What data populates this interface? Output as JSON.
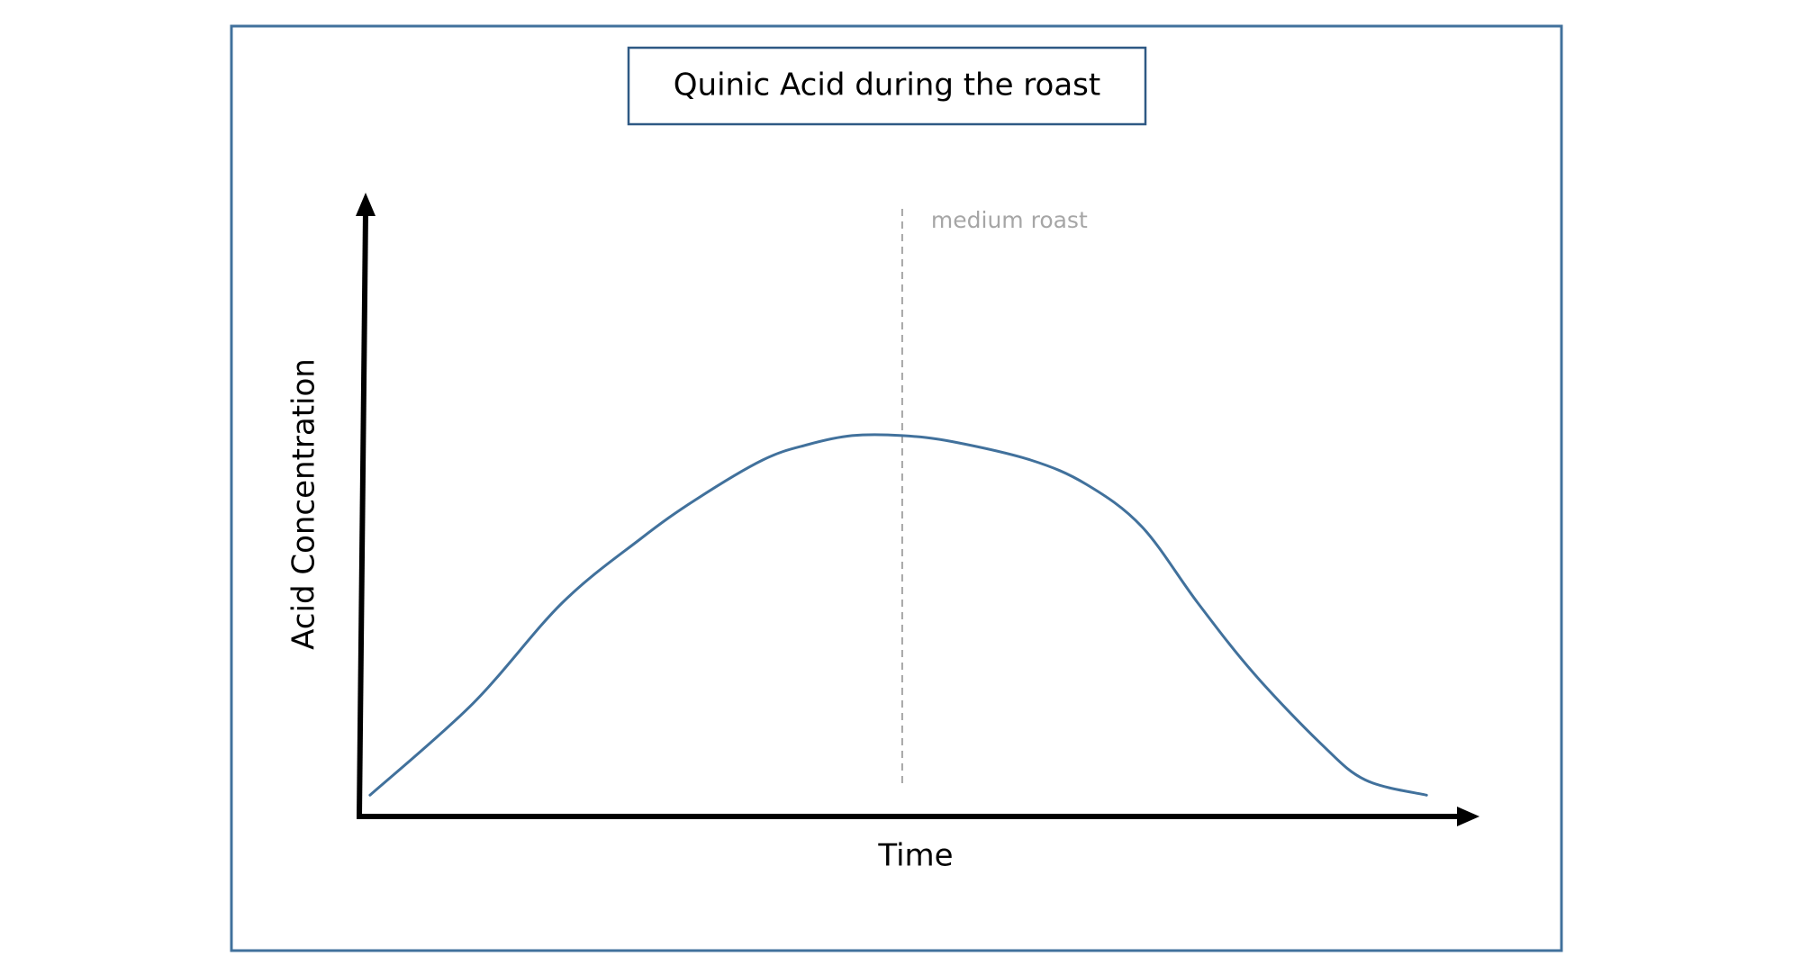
{
  "chart_data": {
    "type": "line",
    "title": "Quinic Acid during the roast",
    "xlabel": "Time",
    "ylabel": "Acid Concentration",
    "xlim": [
      0,
      100
    ],
    "ylim": [
      0,
      100
    ],
    "grid": false,
    "legend": "none",
    "annotations": [
      {
        "type": "vline",
        "x": 48.5,
        "label": "medium roast",
        "color": "#a6a6a6"
      }
    ],
    "series": [
      {
        "color": "#41719c",
        "x": [
          0.8,
          10,
          18,
          25,
          30,
          36,
          40,
          44,
          48.5,
          53,
          60,
          65,
          70,
          75,
          80,
          86,
          90,
          95.5
        ],
        "y": [
          3.5,
          18.5,
          35,
          45.5,
          52,
          58.5,
          61,
          62.5,
          62.5,
          61.5,
          58.5,
          54.5,
          47.5,
          35,
          23.5,
          12,
          6,
          3.5
        ]
      }
    ]
  }
}
